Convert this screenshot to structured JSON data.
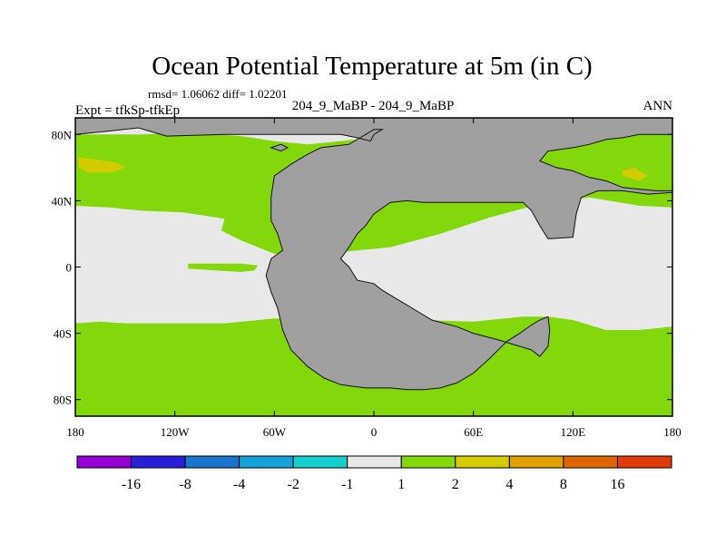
{
  "chart_data": {
    "type": "heatmap",
    "title": "Ocean Potential Temperature at 5m (in C)",
    "stats": "rmsd= 1.06062 diff= 1.02201",
    "left_label": "Expt = tfkSp-tfkEp",
    "center_label": "204_9_MaBP - 204_9_MaBP",
    "right_label": "ANN",
    "xlim": [
      -180,
      180
    ],
    "ylim": [
      -90,
      90
    ],
    "x_ticks": [
      {
        "value": -180,
        "label": "180"
      },
      {
        "value": -120,
        "label": "120W"
      },
      {
        "value": -60,
        "label": "60W"
      },
      {
        "value": 0,
        "label": "0"
      },
      {
        "value": 60,
        "label": "60E"
      },
      {
        "value": 120,
        "label": "120E"
      },
      {
        "value": 180,
        "label": "180"
      }
    ],
    "y_ticks": [
      {
        "value": 80,
        "label": "80N"
      },
      {
        "value": 40,
        "label": "40N"
      },
      {
        "value": 0,
        "label": "0"
      },
      {
        "value": -40,
        "label": "40S"
      },
      {
        "value": -80,
        "label": "80S"
      }
    ],
    "colorbar": {
      "colors": [
        "#9400d3",
        "#2b1ed8",
        "#1874cd",
        "#17a1d9",
        "#14cdcd",
        "#e8e8e8",
        "#82d80a",
        "#d4cc00",
        "#e0a000",
        "#e06400",
        "#e03a06"
      ],
      "labels": [
        "-16",
        "-8",
        "-4",
        "-2",
        "-1",
        "1",
        "2",
        "4",
        "8",
        "16"
      ]
    },
    "regions": [
      {
        "name": "ocean-band-1-to-2",
        "color": "#82d80a",
        "level": "1 to 2",
        "polygon": [
          [
            -180,
            90
          ],
          [
            180,
            90
          ],
          [
            180,
            -90
          ],
          [
            -180,
            -90
          ]
        ]
      },
      {
        "name": "ocean-band-neg1-to-1",
        "color": "#e8e8e8",
        "level": "-1 to 1",
        "polygon": [
          [
            -180,
            37
          ],
          [
            -160,
            36
          ],
          [
            -140,
            34
          ],
          [
            -115,
            33
          ],
          [
            -95,
            30
          ],
          [
            -90,
            29
          ],
          [
            -92,
            22
          ],
          [
            -80,
            16
          ],
          [
            -60,
            8
          ],
          [
            -30,
            8
          ],
          [
            10,
            12
          ],
          [
            40,
            20
          ],
          [
            70,
            30
          ],
          [
            100,
            38
          ],
          [
            130,
            42
          ],
          [
            160,
            37
          ],
          [
            180,
            36
          ],
          [
            180,
            -36
          ],
          [
            160,
            -38
          ],
          [
            140,
            -38
          ],
          [
            120,
            -32
          ],
          [
            105,
            -30
          ],
          [
            90,
            -30
          ],
          [
            60,
            -33
          ],
          [
            30,
            -32
          ],
          [
            0,
            -32
          ],
          [
            -30,
            -31
          ],
          [
            -60,
            -31
          ],
          [
            -90,
            -34
          ],
          [
            -120,
            -34
          ],
          [
            -150,
            -34
          ],
          [
            -165,
            -33
          ],
          [
            -180,
            -34
          ]
        ]
      },
      {
        "name": "north-polar-cap-neutral",
        "color": "#e8e8e8",
        "level": "-1 to 1",
        "polygon": [
          [
            -180,
            90
          ],
          [
            180,
            90
          ],
          [
            180,
            83
          ],
          [
            140,
            81
          ],
          [
            100,
            82
          ],
          [
            60,
            84
          ],
          [
            40,
            85
          ],
          [
            20,
            82
          ],
          [
            0,
            78
          ],
          [
            -20,
            76
          ],
          [
            -40,
            74
          ],
          [
            -60,
            76
          ],
          [
            -80,
            79
          ],
          [
            -110,
            81
          ],
          [
            -140,
            80
          ],
          [
            -180,
            80
          ]
        ]
      },
      {
        "name": "equatorial-band-1-to-2",
        "color": "#82d80a",
        "level": "1 to 2",
        "polygon": [
          [
            -112,
            2
          ],
          [
            -80,
            2
          ],
          [
            -70,
            1
          ],
          [
            -72,
            -2
          ],
          [
            -80,
            -3
          ],
          [
            -112,
            -1
          ]
        ]
      },
      {
        "name": "north-pacific-band-2-to-4",
        "color": "#d4cc00",
        "level": "2 to 4",
        "polygon": [
          [
            -178,
            66
          ],
          [
            -168,
            65
          ],
          [
            -155,
            63
          ],
          [
            -150,
            60
          ],
          [
            -158,
            57
          ],
          [
            -172,
            57
          ],
          [
            -178,
            60
          ]
        ]
      },
      {
        "name": "east-band-2-to-4",
        "color": "#d4cc00",
        "level": "2 to 4",
        "polygon": [
          [
            150,
            58
          ],
          [
            157,
            60
          ],
          [
            165,
            55
          ],
          [
            160,
            52
          ],
          [
            150,
            55
          ]
        ]
      },
      {
        "name": "north-continent-land",
        "color": "#a0a0a0",
        "level": "land",
        "polygon": [
          [
            -180,
            90
          ],
          [
            180,
            90
          ],
          [
            180,
            80
          ],
          [
            160,
            80
          ],
          [
            150,
            78
          ],
          [
            140,
            77
          ],
          [
            130,
            74
          ],
          [
            120,
            72
          ],
          [
            105,
            70
          ],
          [
            100,
            64
          ],
          [
            110,
            60
          ],
          [
            120,
            58
          ],
          [
            130,
            54
          ],
          [
            140,
            52
          ],
          [
            150,
            48
          ],
          [
            160,
            47
          ],
          [
            170,
            46
          ],
          [
            180,
            46
          ],
          [
            180,
            45
          ],
          [
            165,
            44
          ],
          [
            150,
            46
          ],
          [
            135,
            46
          ],
          [
            125,
            42
          ],
          [
            122,
            32
          ],
          [
            120,
            18
          ],
          [
            105,
            17
          ],
          [
            100,
            25
          ],
          [
            95,
            34
          ],
          [
            90,
            39
          ],
          [
            60,
            39
          ],
          [
            30,
            39
          ],
          [
            20,
            40
          ],
          [
            10,
            39
          ],
          [
            0,
            32
          ],
          [
            -5,
            25
          ],
          [
            -10,
            20
          ],
          [
            -15,
            12
          ],
          [
            -20,
            5
          ],
          [
            -15,
            0
          ],
          [
            -10,
            -8
          ],
          [
            0,
            -10
          ],
          [
            5,
            -14
          ],
          [
            15,
            -20
          ],
          [
            25,
            -26
          ],
          [
            35,
            -32
          ],
          [
            50,
            -36
          ],
          [
            60,
            -40
          ],
          [
            75,
            -44
          ],
          [
            85,
            -47
          ],
          [
            95,
            -50
          ],
          [
            100,
            -54
          ],
          [
            105,
            -48
          ],
          [
            106,
            -38
          ],
          [
            105,
            -30
          ],
          [
            100,
            -32
          ],
          [
            95,
            -35
          ],
          [
            88,
            -40
          ],
          [
            80,
            -45
          ],
          [
            70,
            -55
          ],
          [
            60,
            -64
          ],
          [
            50,
            -70
          ],
          [
            40,
            -73
          ],
          [
            30,
            -74
          ],
          [
            20,
            -74
          ],
          [
            10,
            -73
          ],
          [
            -5,
            -73
          ],
          [
            -20,
            -71
          ],
          [
            -30,
            -67
          ],
          [
            -40,
            -60
          ],
          [
            -50,
            -50
          ],
          [
            -55,
            -38
          ],
          [
            -58,
            -25
          ],
          [
            -62,
            -15
          ],
          [
            -65,
            -5
          ],
          [
            -62,
            5
          ],
          [
            -55,
            10
          ],
          [
            -58,
            20
          ],
          [
            -62,
            28
          ],
          [
            -62,
            42
          ],
          [
            -60,
            55
          ],
          [
            -50,
            62
          ],
          [
            -40,
            68
          ],
          [
            -32,
            72
          ],
          [
            -15,
            74
          ],
          [
            -5,
            80
          ],
          [
            0,
            83
          ],
          [
            5,
            83
          ],
          [
            0,
            80
          ],
          [
            -2,
            76
          ],
          [
            -10,
            78
          ],
          [
            -20,
            80
          ],
          [
            -30,
            80
          ],
          [
            -50,
            80
          ],
          [
            -90,
            80
          ],
          [
            -125,
            79
          ],
          [
            -142,
            84
          ],
          [
            -160,
            82
          ],
          [
            -180,
            80
          ]
        ]
      },
      {
        "name": "north-continent-detail-land",
        "color": "#a0a0a0",
        "level": "land",
        "polygon": [
          [
            -62,
            72
          ],
          [
            -56,
            74
          ],
          [
            -52,
            72
          ],
          [
            -56,
            70
          ]
        ]
      }
    ]
  }
}
